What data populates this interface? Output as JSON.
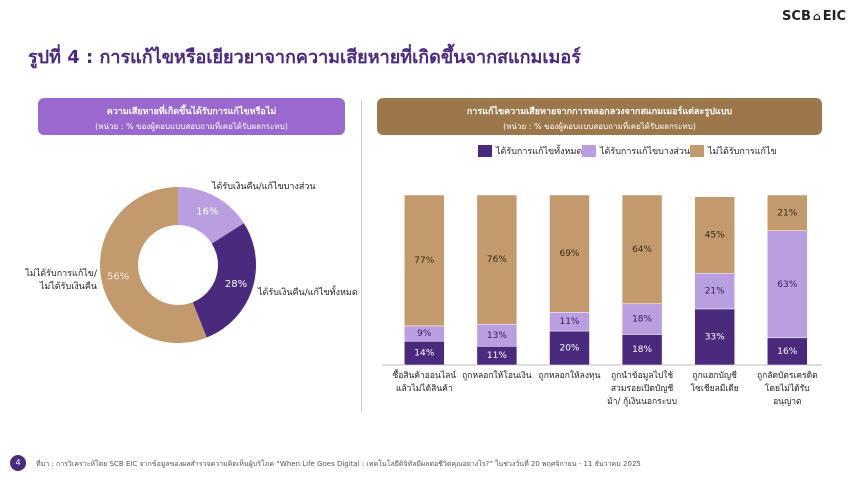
{
  "logo": {
    "left": "SCB",
    "right": "EIC"
  },
  "title": "รูปที่ 4 : การแก้ไขหรือเยียวยาจากความเสียหายที่เกิดขึ้นจากสแกมเมอร์",
  "page_number": "4",
  "footnote": "ที่มา : การวิเคราะห์โดย SCB EIC จากข้อมูลของผลสำรวจความคิดเห็นผู้บริโภค “When Life Goes Digital : เทคโนโลยีดิจิทัลมีผลต่อชีวิตคุณอย่างไร?” ในช่วงวันที่ 20 พฤศจิกายน - 11 ธันวาคม 2025",
  "chart_data": [
    {
      "type": "pie",
      "donut": true,
      "title": "ความเสียหายที่เกิดขึ้นได้รับการแก้ไขหรือไม่",
      "subtitle": "(หน่วย : % ของผู้ตอบแบบสอบถามที่เคยได้รับผลกระทบ)",
      "categories": [
        "ได้รับเงินคืน/แก้ไขบางส่วน",
        "ได้รับเงินคืน/แก้ไขทั้งหมด",
        "ไม่ได้รับการแก้ไข/\nไม่ได้รับเงินคืน"
      ],
      "values": [
        16,
        28,
        56
      ],
      "value_labels": [
        "16%",
        "28%",
        "56%"
      ],
      "colors": [
        "#b99ee0",
        "#4a2a7c",
        "#c29a6d"
      ]
    },
    {
      "type": "stacked_bar",
      "title": "การแก้ไขความเสียหายจากการหลอกลวงจากสแกมเมอร์แต่ละรูปแบบ",
      "subtitle": "(หน่วย : % ของผู้ตอบแบบสอบถามที่เคยได้รับผลกระทบ)",
      "categories": [
        "ซื้อสินค้าออนไลน์\nแล้วไม่ได้สินค้า",
        "ถูกหลอกให้โอนเงิน",
        "ถูกหลอกให้ลงทุน",
        "ถูกนำข้อมูลไปใช้\nสวมรอยเปิดบัญชี\nม้า/ กู้เงินนอกระบบ",
        "ถูกแฮกบัญชี\nโซเชียลมีเดีย",
        "ถูกลัดบัตรเครดิต\nโดยไม่ได้รับ\nอนุญาต"
      ],
      "ylim": [
        0,
        100
      ],
      "series": [
        {
          "name": "ได้รับการแก้ไขทั้งหมด",
          "color": "#4a2a7c",
          "values": [
            14,
            11,
            20,
            18,
            33,
            16
          ],
          "value_labels": [
            "14%",
            "11%",
            "20%",
            "18%",
            "33%",
            "16%"
          ]
        },
        {
          "name": "ได้รับการแก้ไขบางส่วน",
          "color": "#b99ee0",
          "values": [
            9,
            13,
            11,
            18,
            21,
            63
          ],
          "value_labels": [
            "9%",
            "13%",
            "11%",
            "18%",
            "21%",
            "63%"
          ]
        },
        {
          "name": "ไม่ได้รับการแก้ไข",
          "color": "#c29a6d",
          "values": [
            77,
            76,
            69,
            64,
            45,
            21
          ],
          "value_labels": [
            "77%",
            "76%",
            "69%",
            "64%",
            "45%",
            "21%"
          ]
        }
      ]
    }
  ]
}
